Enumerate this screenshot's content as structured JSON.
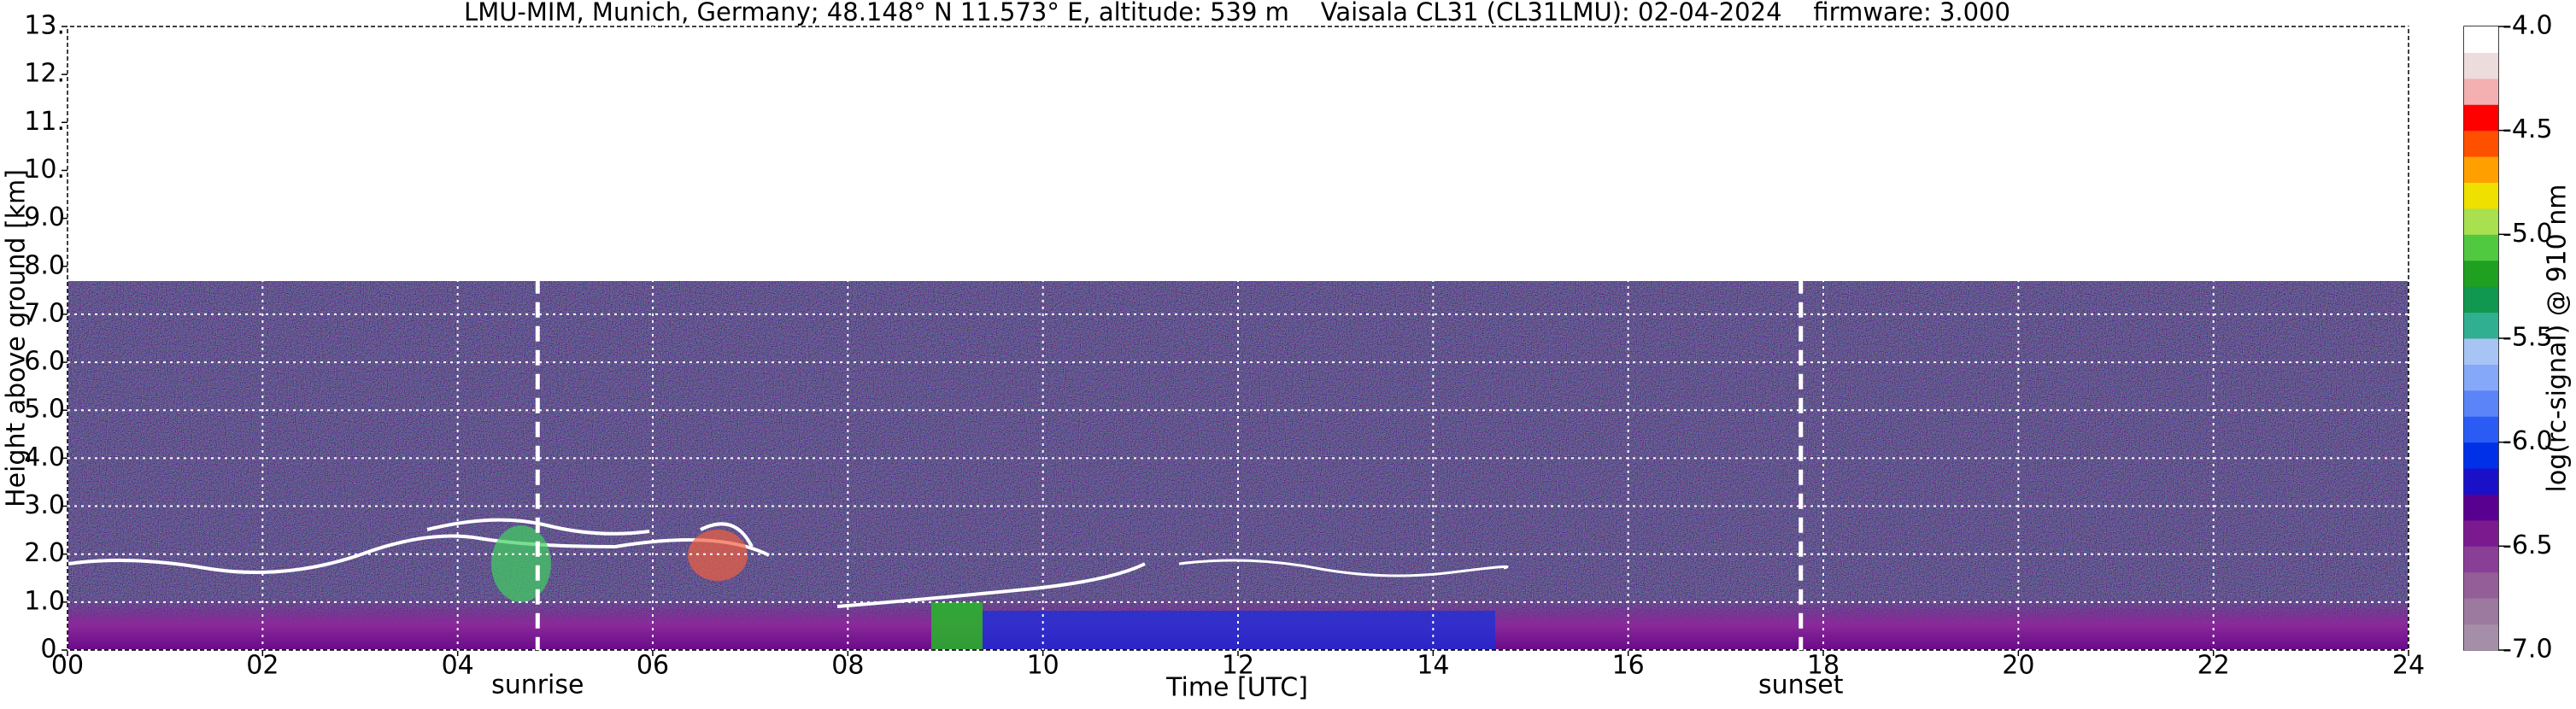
{
  "chart_data": {
    "type": "heatmap",
    "title": "LMU-MIM, Munich, Germany; 48.148° N 11.573° E, altitude: 539 m    Vaisala CL31 (CL31LMU): 02-04-2024    firmware: 3.000",
    "xlabel": "Time [UTC]",
    "ylabel": "Height above ground [km]",
    "xlim": [
      0,
      24
    ],
    "xticks": [
      {
        "value": 0,
        "label": "00"
      },
      {
        "value": 2,
        "label": "02"
      },
      {
        "value": 4,
        "label": "04"
      },
      {
        "value": 6,
        "label": "06"
      },
      {
        "value": 8,
        "label": "08"
      },
      10,
      12,
      14,
      16,
      18,
      20,
      22,
      24
    ],
    "ylim": [
      0,
      13
    ],
    "yticks": [
      {
        "value": 0,
        "label": "0."
      },
      {
        "value": 1,
        "label": "1.0"
      },
      {
        "value": 2,
        "label": "2.0"
      },
      {
        "value": 3,
        "label": "3.0"
      },
      {
        "value": 4,
        "label": "4.0"
      },
      {
        "value": 5,
        "label": "5.0"
      },
      {
        "value": 6,
        "label": "6.0"
      },
      {
        "value": 7,
        "label": "7.0"
      },
      {
        "value": 8,
        "label": "8.0"
      },
      {
        "value": 9,
        "label": "9.0"
      },
      {
        "value": 10,
        "label": "10."
      },
      {
        "value": 11,
        "label": "11."
      },
      {
        "value": 12,
        "label": "12."
      },
      {
        "value": 13,
        "label": "13."
      }
    ],
    "grid": true,
    "annotations": [
      {
        "text": "sunrise",
        "x": 4.82
      },
      {
        "text": "sunset",
        "x": 17.77
      }
    ],
    "colorbar": {
      "label": "log(rc-signal) @ 910 nm",
      "lim": [
        -7,
        -4
      ],
      "ticks": [
        {
          "value": -4,
          "label": "-4.0"
        },
        -4.5,
        {
          "value": -5,
          "label": "-5.0"
        },
        -5.5,
        {
          "value": -6,
          "label": "-6.0"
        },
        -6.5,
        {
          "value": -7,
          "label": "-7.0"
        }
      ],
      "colors": [
        "#a58fa8",
        "#9c7aa0",
        "#945f98",
        "#8a3f96",
        "#7b1a8f",
        "#5a0090",
        "#1a10c8",
        "#0030e8",
        "#2a5cf5",
        "#5a84f8",
        "#86a8f8",
        "#a8c4f4",
        "#30b090",
        "#109850",
        "#20a020",
        "#50c840",
        "#a8e050",
        "#f0e000",
        "#ffa000",
        "#ff5000",
        "#ff0000",
        "#f4b0b0",
        "#ecdcdc",
        "#ffffff"
      ]
    }
  }
}
